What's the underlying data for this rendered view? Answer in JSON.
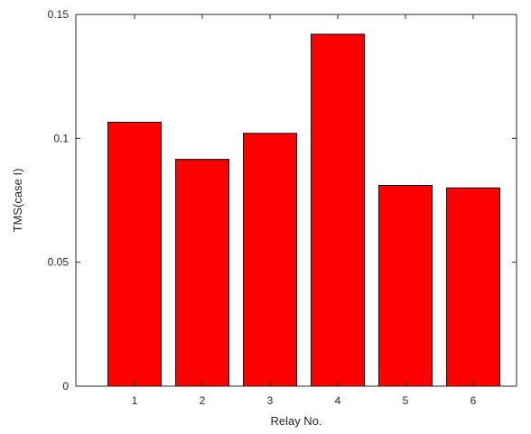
{
  "chart_data": {
    "type": "bar",
    "categories": [
      "1",
      "2",
      "3",
      "4",
      "5",
      "6"
    ],
    "values": [
      0.1065,
      0.0915,
      0.102,
      0.142,
      0.081,
      0.08
    ],
    "title": "",
    "xlabel": "Relay No.",
    "ylabel": "TMS(case I)",
    "ylim": [
      0,
      0.15
    ],
    "yticks": [
      "0",
      "0.05",
      "0.1",
      "0.15"
    ],
    "ytick_values": [
      0,
      0.05,
      0.1,
      0.15
    ],
    "grid": false,
    "bar_color": "#ff0000"
  }
}
